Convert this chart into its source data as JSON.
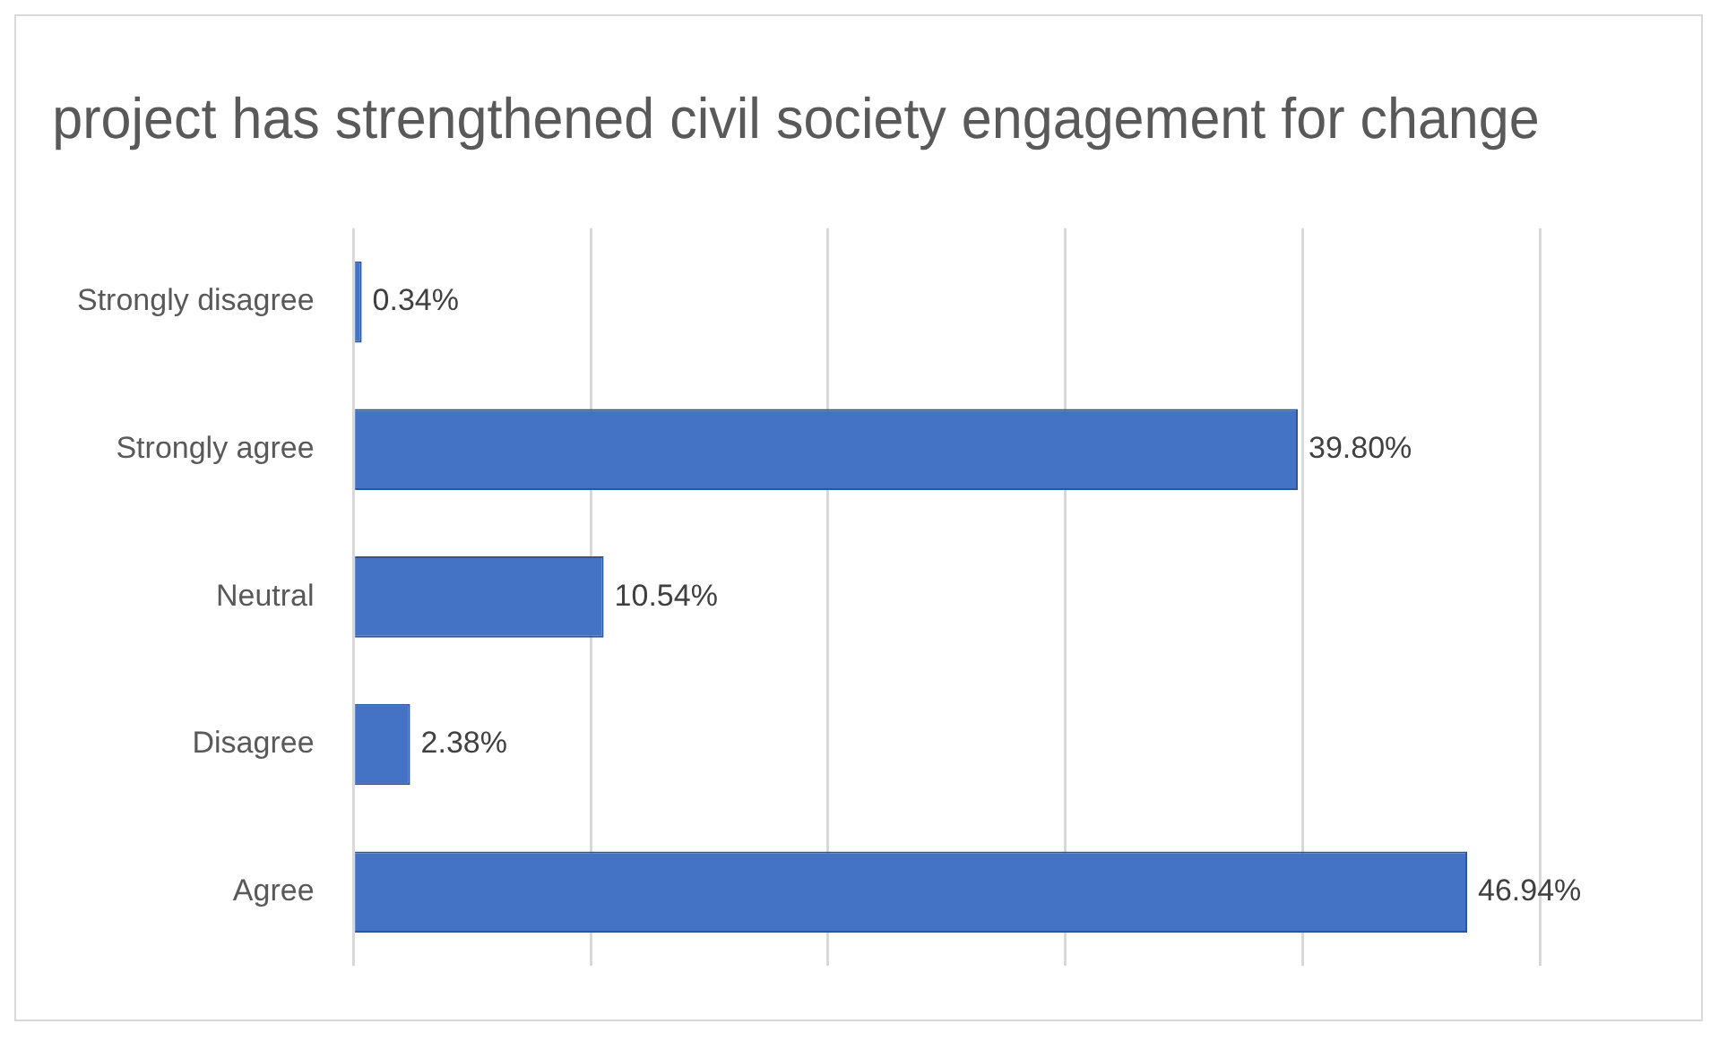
{
  "chart_data": {
    "type": "bar",
    "orientation": "horizontal",
    "title": "project has strengthened civil society engagement for change",
    "categories": [
      "Strongly disagree",
      "Strongly agree",
      "Neutral",
      "Disagree",
      "Agree"
    ],
    "values": [
      0.34,
      39.8,
      10.54,
      2.38,
      46.94
    ],
    "value_labels": [
      "0.34%",
      "39.80%",
      "10.54%",
      "2.38%",
      "46.94%"
    ],
    "color": "#4472c4",
    "xlim": [
      0,
      50
    ],
    "xticks": [
      {
        "value": 0,
        "label": null
      },
      {
        "value": 10,
        "label": null
      },
      {
        "value": 20,
        "label": null
      },
      {
        "value": 30,
        "label": null
      },
      {
        "value": 40,
        "label": null
      },
      {
        "value": 50,
        "label": null
      }
    ],
    "tick_labels": "y",
    "grid": "x",
    "legend": false
  }
}
